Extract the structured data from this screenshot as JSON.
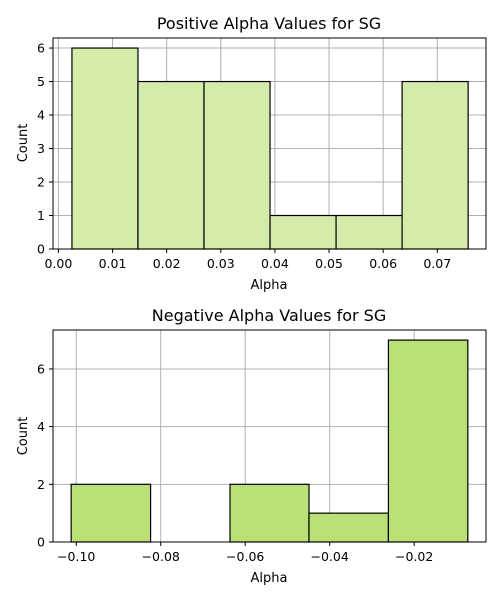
{
  "chart_data": [
    {
      "type": "bar",
      "title": "Positive Alpha Values for SG",
      "xlabel": "Alpha",
      "ylabel": "Count",
      "color": "#d4ecaa",
      "bins": [
        {
          "x0": 0.0025,
          "x1": 0.0147,
          "count": 6
        },
        {
          "x0": 0.0147,
          "x1": 0.0269,
          "count": 5
        },
        {
          "x0": 0.0269,
          "x1": 0.0391,
          "count": 5
        },
        {
          "x0": 0.0391,
          "x1": 0.0513,
          "count": 1
        },
        {
          "x0": 0.0513,
          "x1": 0.0635,
          "count": 1
        },
        {
          "x0": 0.0635,
          "x1": 0.0757,
          "count": 5
        }
      ],
      "xlim": [
        -0.001,
        0.079
      ],
      "ylim": [
        0,
        6.3
      ],
      "xticks": [
        0.0,
        0.01,
        0.02,
        0.03,
        0.04,
        0.05,
        0.06,
        0.07
      ],
      "xtick_labels": [
        "0.00",
        "0.01",
        "0.02",
        "0.03",
        "0.04",
        "0.05",
        "0.06",
        "0.07"
      ],
      "yticks": [
        0,
        1,
        2,
        3,
        4,
        5,
        6
      ],
      "ytick_labels": [
        "0",
        "1",
        "2",
        "3",
        "4",
        "5",
        "6"
      ],
      "grid": true
    },
    {
      "type": "bar",
      "title": "Negative Alpha Values for SG",
      "xlabel": "Alpha",
      "ylabel": "Count",
      "color": "#bbe078",
      "bins": [
        {
          "x0": -0.1012,
          "x1": -0.0824,
          "count": 2
        },
        {
          "x0": -0.0824,
          "x1": -0.0636,
          "count": 0
        },
        {
          "x0": -0.0636,
          "x1": -0.0449,
          "count": 2
        },
        {
          "x0": -0.0449,
          "x1": -0.0261,
          "count": 1
        },
        {
          "x0": -0.0261,
          "x1": -0.0073,
          "count": 7
        }
      ],
      "xlim": [
        -0.1055,
        -0.003
      ],
      "ylim": [
        0,
        7.35
      ],
      "xticks": [
        -0.1,
        -0.08,
        -0.06,
        -0.04,
        -0.02
      ],
      "xtick_labels": [
        "−0.10",
        "−0.08",
        "−0.06",
        "−0.04",
        "−0.02"
      ],
      "yticks": [
        0,
        2,
        4,
        6
      ],
      "ytick_labels": [
        "0",
        "2",
        "4",
        "6"
      ],
      "grid": true
    }
  ]
}
